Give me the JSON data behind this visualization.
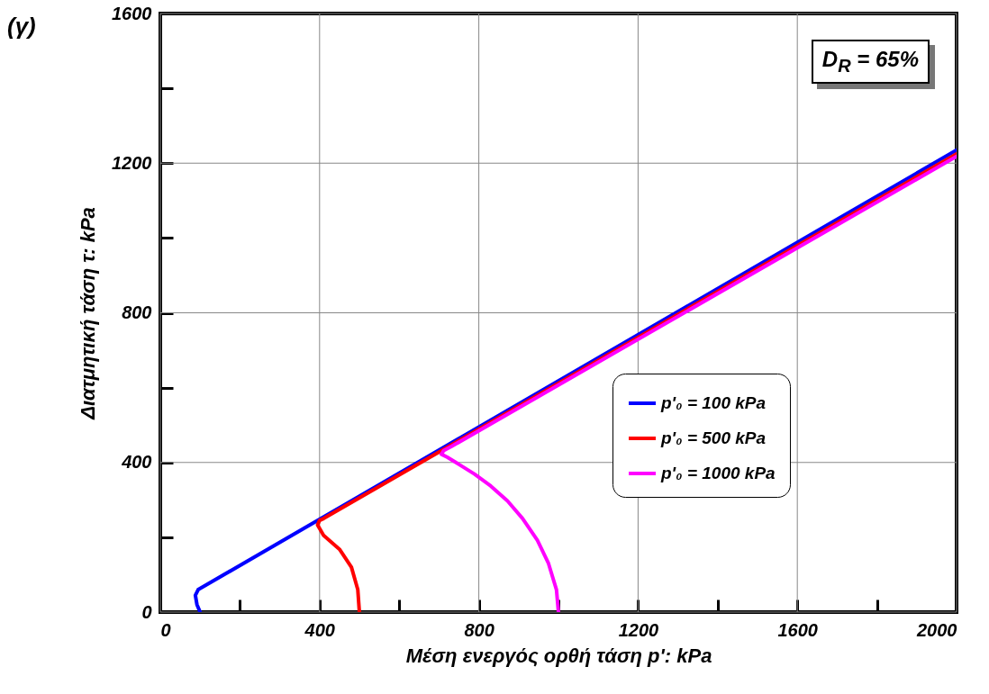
{
  "chart_data": {
    "type": "line",
    "title": "(γ)",
    "xlabel": "Μέση ενεργός ορθή τάση p': kPa",
    "ylabel": "Διατμητική τάση τ: kPa",
    "annotations": [
      "D$_{R}$ = 65%"
    ],
    "xlim": [
      0,
      2000
    ],
    "xticks": [
      0,
      {
        "value": 200,
        "label": null
      },
      400,
      {
        "value": 600,
        "label": null
      },
      800,
      {
        "value": 1000,
        "label": null
      },
      1200,
      {
        "value": 1400,
        "label": null
      },
      1600,
      {
        "value": 1800,
        "label": null
      },
      2000
    ],
    "ylim": [
      0,
      1600
    ],
    "yticks": [
      0,
      {
        "value": 200,
        "label": null
      },
      400,
      {
        "value": 600,
        "label": null
      },
      800,
      {
        "value": 1000,
        "label": null
      },
      1200,
      {
        "value": 1400,
        "label": null
      },
      1600
    ],
    "grid": true,
    "legend": "right",
    "line_style": "solid",
    "series": [
      {
        "name": "p'₀ = 100 kPa",
        "color": "#0000ff",
        "x": [
          100,
          92,
          88,
          95,
          2000
        ],
        "values": [
          0,
          20,
          45,
          60,
          1235
        ]
      },
      {
        "name": "p'₀ = 500 kPa",
        "color": "#ff0000",
        "x": [
          500,
          496,
          480,
          450,
          410,
          395,
          400,
          410,
          2000
        ],
        "values": [
          0,
          60,
          120,
          168,
          205,
          233,
          245,
          250,
          1225
        ]
      },
      {
        "name": "p'₀ = 1000 kPa",
        "color": "#ff00ff",
        "x": [
          1000,
          995,
          975,
          947,
          910,
          872,
          830,
          789,
          750,
          721,
          706,
          712,
          730,
          2000
        ],
        "values": [
          0,
          60,
          130,
          192,
          250,
          297,
          337,
          369,
          395,
          414,
          422,
          432,
          442,
          1218
        ]
      }
    ]
  }
}
